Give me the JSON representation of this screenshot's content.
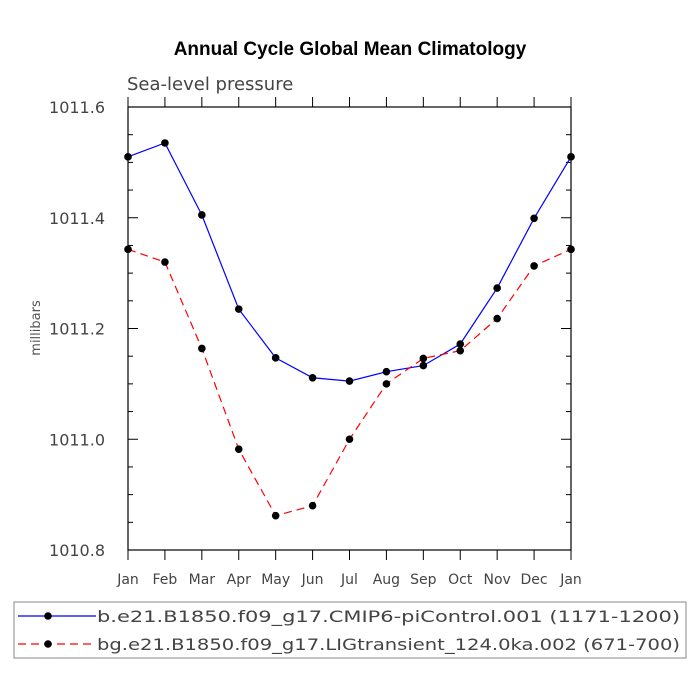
{
  "chart_data": {
    "type": "line",
    "title": "Annual Cycle Global Mean Climatology",
    "subtitle": "Sea-level pressure",
    "xlabel": "",
    "ylabel": "millibars",
    "ylim": [
      1010.8,
      1011.6
    ],
    "yticks": [
      "1010.8",
      "1011.0",
      "1011.2",
      "1011.4",
      "1011.6"
    ],
    "categories": [
      "Jan",
      "Feb",
      "Mar",
      "Apr",
      "May",
      "Jun",
      "Jul",
      "Aug",
      "Sep",
      "Oct",
      "Nov",
      "Dec",
      "Jan"
    ],
    "grid": false,
    "legend_position": "bottom",
    "series": [
      {
        "name": "b.e21.B1850.f09_g17.CMIP6-piControl.001 (1171-1200)",
        "color": "#0000ff",
        "dash": "solid",
        "values": [
          1011.51,
          1011.535,
          1011.405,
          1011.235,
          1011.147,
          1011.111,
          1011.105,
          1011.122,
          1011.133,
          1011.172,
          1011.273,
          1011.399,
          1011.51
        ]
      },
      {
        "name": "bg.e21.B1850.f09_g17.LIGtransient_124.0ka.002 (671-700)",
        "color": "#ff0000",
        "dash": "dashed",
        "values": [
          1011.343,
          1011.32,
          1011.164,
          1010.982,
          1010.862,
          1010.88,
          1011.0,
          1011.1,
          1011.146,
          1011.16,
          1011.218,
          1011.313,
          1011.343
        ]
      }
    ]
  }
}
